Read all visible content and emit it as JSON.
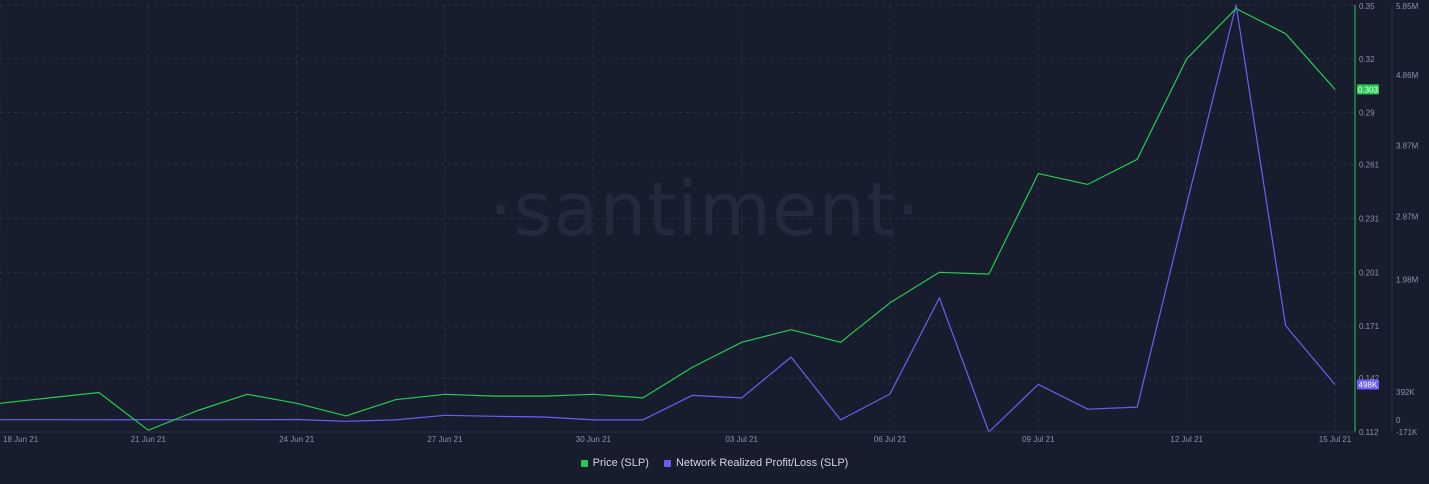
{
  "watermark": "·santiment·",
  "colors": {
    "background": "#181d2d",
    "price": "#26c953",
    "profit_loss": "#6c5ef2",
    "grid": "#2a3142",
    "text": "#8c93a8"
  },
  "chart_data": {
    "type": "line",
    "title": "",
    "x": [
      "18 Jun 21",
      "19 Jun 21",
      "20 Jun 21",
      "21 Jun 21",
      "22 Jun 21",
      "23 Jun 21",
      "24 Jun 21",
      "25 Jun 21",
      "26 Jun 21",
      "27 Jun 21",
      "28 Jun 21",
      "29 Jun 21",
      "30 Jun 21",
      "01 Jul 21",
      "02 Jul 21",
      "03 Jul 21",
      "04 Jul 21",
      "05 Jul 21",
      "06 Jul 21",
      "07 Jul 21",
      "08 Jul 21",
      "09 Jul 21",
      "10 Jul 21",
      "11 Jul 21",
      "12 Jul 21",
      "13 Jul 21",
      "14 Jul 21",
      "15 Jul 21"
    ],
    "x_tick_labels": [
      "18 Jun 21",
      "21 Jun 21",
      "24 Jun 21",
      "27 Jun 21",
      "30 Jun 21",
      "03 Jul 21",
      "06 Jul 21",
      "09 Jul 21",
      "12 Jul 21",
      "15 Jul 21"
    ],
    "series": [
      {
        "name": "Price (SLP)",
        "axis": "left",
        "color": "#26c953",
        "values": [
          0.128,
          0.131,
          0.134,
          0.113,
          0.124,
          0.133,
          0.128,
          0.121,
          0.13,
          0.133,
          0.132,
          0.132,
          0.133,
          0.131,
          0.148,
          0.162,
          0.169,
          0.162,
          0.184,
          0.201,
          0.2,
          0.256,
          0.25,
          0.264,
          0.32,
          0.348,
          0.334,
          0.303
        ]
      },
      {
        "name": "Network Realized Profit/Loss (SLP)",
        "axis": "right",
        "color": "#6c5ef2",
        "values": [
          2000,
          2000,
          1000,
          2000,
          1000,
          2000,
          5000,
          -20000,
          0,
          65000,
          50000,
          40000,
          0,
          0,
          345000,
          310000,
          885000,
          0,
          365000,
          1720000,
          -171000,
          500000,
          150000,
          180000,
          3040000,
          5850000,
          1330000,
          498000
        ]
      }
    ],
    "left_axis": {
      "min": 0.112,
      "max": 0.35,
      "ticks": [
        "0.112",
        "0.142",
        "0.171",
        "0.201",
        "0.231",
        "0.261",
        "0.29",
        "0.32",
        "0.35"
      ]
    },
    "right_axis": {
      "min": -171000,
      "max": 5850000,
      "ticks": [
        "-171K",
        "0",
        "392K",
        "1.98M",
        "2.87M",
        "3.87M",
        "4.86M",
        "5.85M"
      ]
    },
    "last_value_labels": {
      "price": "0.303",
      "profit_loss": "498K"
    },
    "grid": true,
    "legend_position": "bottom-center"
  }
}
